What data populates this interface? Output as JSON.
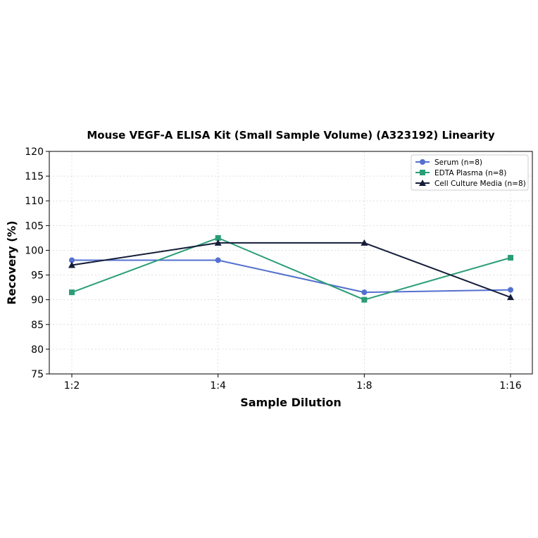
{
  "chart_data": {
    "type": "line",
    "title": "Mouse VEGF-A ELISA Kit (Small Sample Volume) (A323192) Linearity",
    "xlabel": "Sample Dilution",
    "ylabel": "Recovery (%)",
    "categories": [
      "1:2",
      "1:4",
      "1:8",
      "1:16"
    ],
    "ylim": [
      75,
      120
    ],
    "yticks": [
      "75",
      "80",
      "85",
      "90",
      "95",
      "100",
      "105",
      "110",
      "115",
      "120"
    ],
    "grid": true,
    "legend_position": "top-right",
    "series": [
      {
        "name": "Serum (n=8)",
        "values": [
          98,
          98,
          91.5,
          92
        ],
        "color": "#5470cf",
        "marker": "circle"
      },
      {
        "name": "EDTA Plasma (n=8)",
        "values": [
          91.5,
          102.5,
          90,
          98.5
        ],
        "color": "#2a9d78",
        "marker": "square"
      },
      {
        "name": "Cell Culture Media (n=8)",
        "values": [
          97,
          101.5,
          101.5,
          90.5
        ],
        "color": "#141c38",
        "marker": "triangle"
      }
    ]
  }
}
